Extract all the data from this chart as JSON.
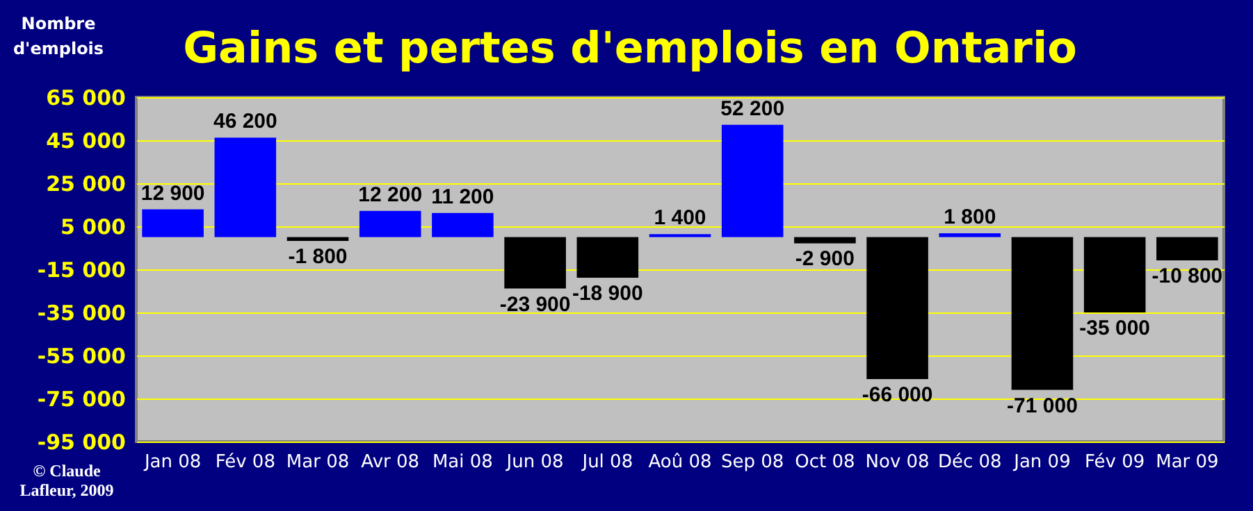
{
  "chart_data": {
    "type": "bar",
    "title": "Gains et pertes d'emplois en Ontario",
    "ylabel": "Nombre d'emplois",
    "categories": [
      "Jan 08",
      "Fév 08",
      "Mar 08",
      "Avr 08",
      "Mai 08",
      "Jun 08",
      "Jul 08",
      "Aoû 08",
      "Sep 08",
      "Oct 08",
      "Nov 08",
      "Déc 08",
      "Jan 09",
      "Fév 09",
      "Mar 09"
    ],
    "values": [
      12900,
      46200,
      -1800,
      12200,
      11200,
      -23900,
      -18900,
      1400,
      52200,
      -2900,
      -66000,
      1800,
      -71000,
      -35000,
      -10800
    ],
    "value_labels": [
      "12 900",
      "46 200",
      "-1 800",
      "12 200",
      "11 200",
      "-23 900",
      "-18 900",
      "1 400",
      "52 200",
      "-2 900",
      "-66 000",
      "1 800",
      "-71 000",
      "-35 000",
      "-10 800"
    ],
    "colors": [
      "#0000ff",
      "#0000ff",
      "#000000",
      "#0000ff",
      "#0000ff",
      "#000000",
      "#000000",
      "#0000ff",
      "#0000ff",
      "#000000",
      "#000000",
      "#0000ff",
      "#000000",
      "#000000",
      "#000000"
    ],
    "ylim": [
      -95000,
      65000
    ],
    "yticks": [
      {
        "value": 65000,
        "label": "65 000"
      },
      {
        "value": 45000,
        "label": "45 000"
      },
      {
        "value": 25000,
        "label": "25 000"
      },
      {
        "value": 5000,
        "label": "5 000"
      },
      {
        "value": -15000,
        "label": "-15 000"
      },
      {
        "value": -35000,
        "label": "-35 000"
      },
      {
        "value": -55000,
        "label": "-55 000"
      },
      {
        "value": -75000,
        "label": "-75 000"
      },
      {
        "value": -95000,
        "label": "-95 000"
      }
    ],
    "grid": "y",
    "annotations": [
      "© Claude Lafleur, 2009"
    ]
  }
}
